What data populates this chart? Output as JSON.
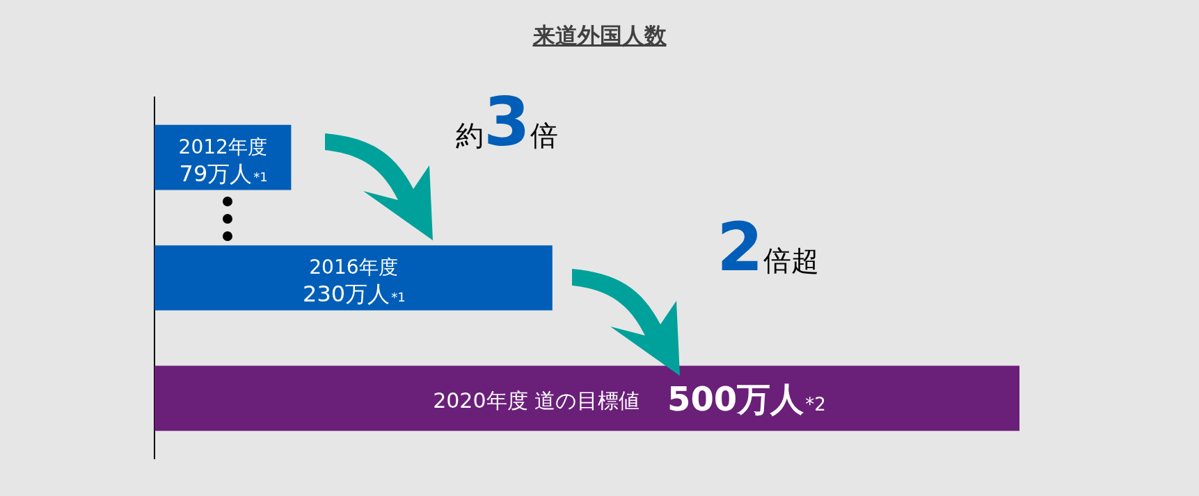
{
  "chart_data": {
    "type": "bar",
    "orientation": "horizontal",
    "title": "来道外国人数",
    "categories": [
      "2012年度",
      "2016年度",
      "2020年度 道の目標値"
    ],
    "values": [
      79,
      230,
      500
    ],
    "colors": [
      "#005eb8",
      "#005eb8",
      "#6a1f79"
    ],
    "value_labels": [
      "79万人*1",
      "230万人*1",
      "500万人*2"
    ],
    "annotations": [
      "約3倍",
      "2倍超"
    ],
    "legend": false
  }
}
